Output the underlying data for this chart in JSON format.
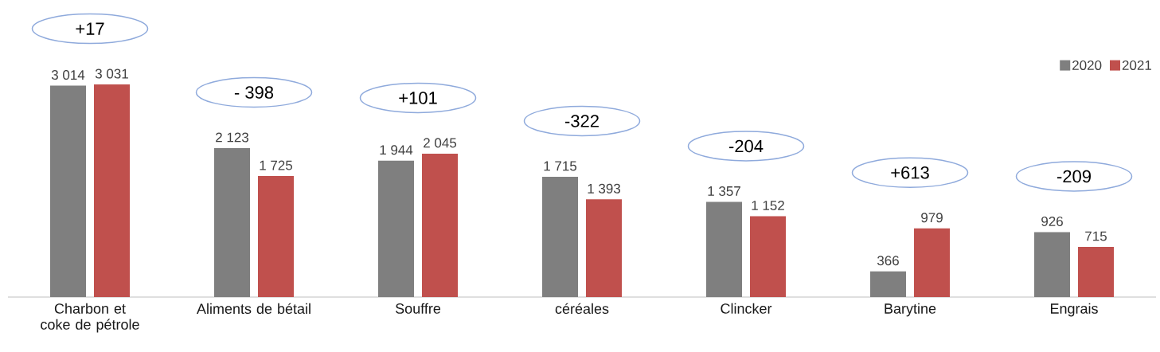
{
  "chart_data": {
    "type": "bar",
    "categories": [
      "Charbon et coke de pétrole",
      "Aliments de bétail",
      "Souffre",
      "céréales",
      "Clincker",
      "Barytine",
      "Engrais"
    ],
    "series": [
      {
        "name": "2020",
        "color": "#7f7f7f",
        "values": [
          3014,
          2123,
          1944,
          1715,
          1357,
          366,
          926
        ],
        "value_labels": [
          "3 014",
          "2 123",
          "1 944",
          "1 715",
          "1 357",
          "366",
          "926"
        ]
      },
      {
        "name": "2021",
        "color": "#c0504d",
        "values": [
          3031,
          1725,
          2045,
          1393,
          1152,
          979,
          715
        ],
        "value_labels": [
          "3 031",
          "1 725",
          "2 045",
          "1 393",
          "1 152",
          "979",
          "715"
        ]
      }
    ],
    "annotations": [
      "+17",
      "- 398",
      "+101",
      "-322",
      "-204",
      "+613",
      "-209"
    ],
    "legend": "top right"
  }
}
